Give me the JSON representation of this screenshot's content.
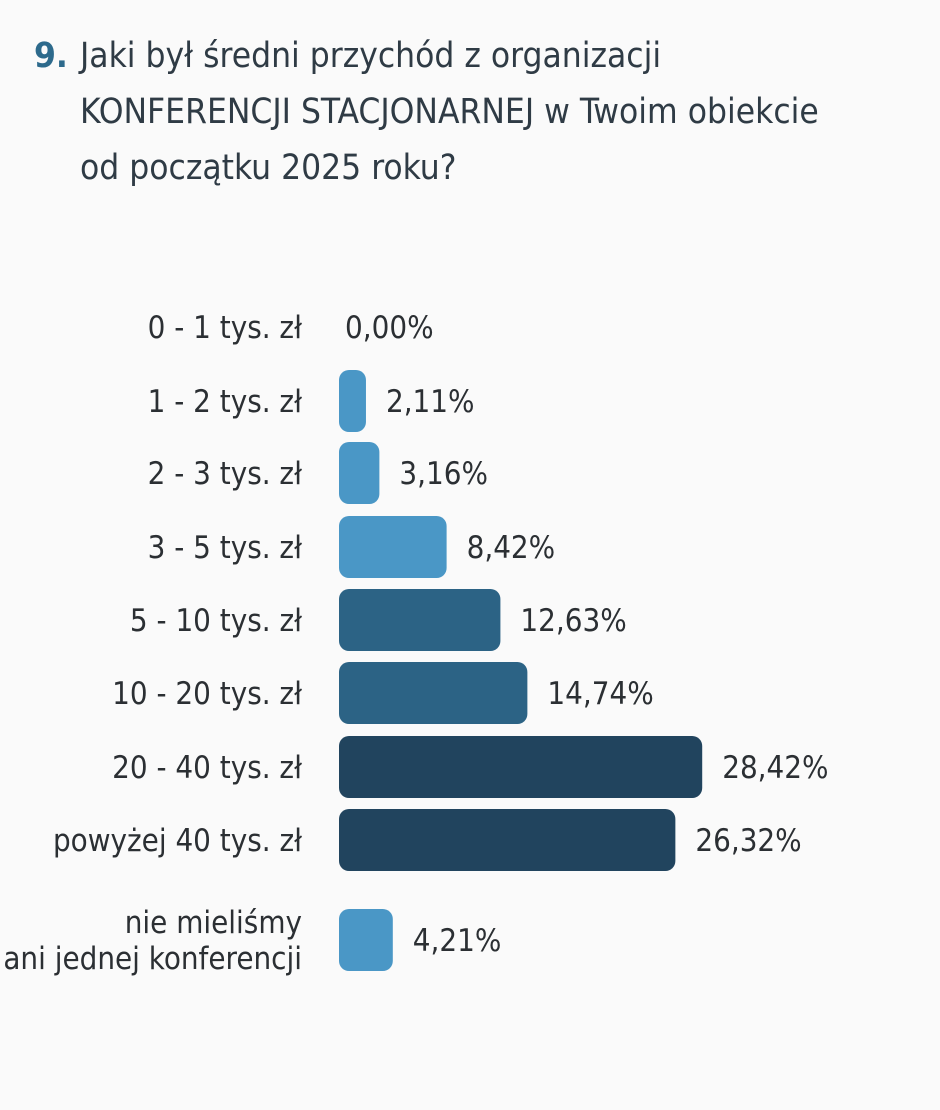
{
  "question": {
    "number": "9.",
    "line1": "Jaki był średni przychód z organizacji",
    "line2": "KONFERENCJI STACJONARNEJ w Twoim obiekcie",
    "line3": "od początku 2025 roku?"
  },
  "chart_data": {
    "type": "bar",
    "orientation": "horizontal",
    "title": "Jaki był średni przychód z organizacji KONFERENCJI STACJONARNEJ w Twoim obiekcie od początku 2025 roku?",
    "categories": [
      "0 - 1 tys. zł",
      "1 - 2 tys. zł",
      "2 - 3 tys. zł",
      "3 - 5 tys. zł",
      "5 - 10 tys. zł",
      "10 - 20 tys. zł",
      "20 - 40 tys. zł",
      "powyżej 40 tys. zł",
      "nie mieliśmy ani jednej konferencji"
    ],
    "category_lines": [
      [
        "0 - 1 tys. zł"
      ],
      [
        "1 - 2 tys. zł"
      ],
      [
        "2 - 3 tys. zł"
      ],
      [
        "3 - 5 tys. zł"
      ],
      [
        "5 - 10 tys. zł"
      ],
      [
        "10 - 20 tys. zł"
      ],
      [
        "20 - 40 tys. zł"
      ],
      [
        "powyżej 40 tys. zł"
      ],
      [
        "nie mieliśmy",
        "ani jednej konferencji"
      ]
    ],
    "values": [
      0.0,
      2.11,
      3.16,
      8.42,
      12.63,
      14.74,
      28.42,
      26.32,
      4.21
    ],
    "value_labels": [
      "0,00%",
      "2,11%",
      "3,16%",
      "8,42%",
      "12,63%",
      "14,74%",
      "28,42%",
      "26,32%",
      "4,21%"
    ],
    "colors": [
      "#4a97c6",
      "#4a97c6",
      "#4a97c6",
      "#4a97c6",
      "#2c6385",
      "#2c6385",
      "#21445e",
      "#21445e",
      "#4a97c6"
    ],
    "xlabel": "",
    "ylabel": "",
    "grid": false,
    "legend": "none"
  }
}
